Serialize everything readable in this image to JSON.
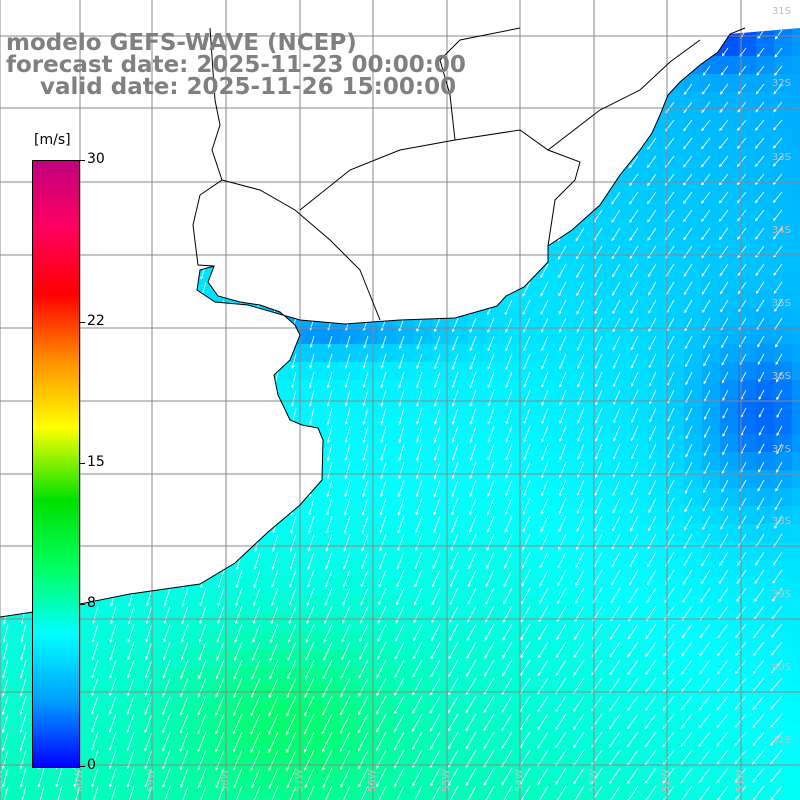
{
  "titles": {
    "line1": "modelo GEFS-WAVE (NCEP)",
    "line2": "forecast date: 2025-11-23 00:00:00",
    "line3": "valid date: 2025-11-26 15:00:00"
  },
  "colorbar": {
    "unit": "[m/s]",
    "ticks": [
      "30",
      "22",
      "15",
      "8",
      "0"
    ],
    "tick_values": [
      30,
      22,
      15,
      8,
      0
    ],
    "range": [
      0,
      30
    ],
    "colors": [
      "#0000ff",
      "#00a0ff",
      "#00ffff",
      "#00ff60",
      "#00e000",
      "#ffff00",
      "#ff9000",
      "#ff0000",
      "#ff0060",
      "#c00080"
    ]
  },
  "map": {
    "lat_labels": [
      "31S",
      "32S",
      "33S",
      "34S",
      "35S",
      "36S",
      "37S",
      "38S",
      "39S",
      "40S",
      "41S"
    ],
    "lon_labels": [
      "61W",
      "60W",
      "59W",
      "58W",
      "57W",
      "56W",
      "55W",
      "54W",
      "53W",
      "52W",
      "51W"
    ],
    "lat_range": [
      -41.2,
      -30.8
    ],
    "lon_range": [
      -61.2,
      -50.4
    ],
    "field_range_ms": [
      3,
      9
    ],
    "wind_direction": "mostly from the north-northeast"
  }
}
